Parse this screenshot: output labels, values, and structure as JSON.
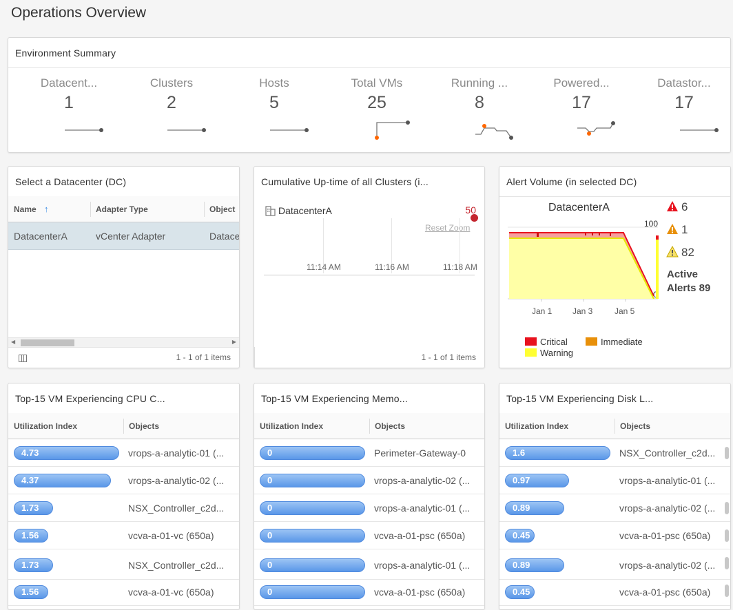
{
  "page": {
    "title": "Operations Overview"
  },
  "env_summary": {
    "title": "Environment Summary",
    "items": [
      {
        "label": "Datacent...",
        "value": "1"
      },
      {
        "label": "Clusters",
        "value": "2"
      },
      {
        "label": "Hosts",
        "value": "5"
      },
      {
        "label": "Total VMs",
        "value": "25"
      },
      {
        "label": "Running ...",
        "value": "8"
      },
      {
        "label": "Powered...",
        "value": "17"
      },
      {
        "label": "Datastor...",
        "value": "17"
      }
    ],
    "colors": {
      "spark_line": "#777777",
      "spark_marker": "#ff6600"
    }
  },
  "datacenter_select": {
    "title": "Select a Datacenter (DC)",
    "columns": [
      "Name",
      "Adapter Type",
      "Object"
    ],
    "rows": [
      [
        "DatacenterA",
        "vCenter Adapter",
        "Datace"
      ]
    ],
    "footer": "1 - 1 of 1 items"
  },
  "uptime": {
    "title": "Cumulative Up-time of all Clusters (i...",
    "dc_label": "DatacenterA",
    "value": "50",
    "reset_zoom": "Reset Zoom",
    "times": [
      "11:14 AM",
      "11:16 AM",
      "11:18 AM"
    ],
    "footer": "1 - 1 of 1 items"
  },
  "alert_volume": {
    "title": "Alert Volume (in selected DC)",
    "chart_title": "DatacenterA",
    "y_top": "100",
    "y_bottom": "0",
    "x_labels": [
      "Jan 1",
      "Jan 3",
      "Jan 5"
    ],
    "counts": {
      "critical": "6",
      "immediate": "1",
      "warning": "82"
    },
    "active_label": "Active",
    "active_line": "Alerts 89",
    "legend": {
      "critical": "Critical",
      "immediate": "Immediate",
      "warning": "Warning"
    },
    "colors": {
      "critical": "#e8121e",
      "immediate": "#e8900a",
      "warning": "#ffff33"
    }
  },
  "cpu": {
    "title": "Top-15 VM Experiencing CPU C...",
    "columns": [
      "Utilization Index",
      "Objects"
    ],
    "rows": [
      {
        "value": "4.73",
        "object": "vrops-a-analytic-01 (...",
        "fill": 1.0
      },
      {
        "value": "4.37",
        "object": "vrops-a-analytic-02 (...",
        "fill": 0.92
      },
      {
        "value": "1.73",
        "object": "NSX_Controller_c2d...",
        "fill": 0.37
      },
      {
        "value": "1.56",
        "object": "vcva-a-01-vc (650a)",
        "fill": 0.33
      },
      {
        "value": "1.73",
        "object": "NSX_Controller_c2d...",
        "fill": 0.37
      },
      {
        "value": "1.56",
        "object": "vcva-a-01-vc (650a)",
        "fill": 0.33
      }
    ]
  },
  "memory": {
    "title": "Top-15 VM Experiencing Memo...",
    "columns": [
      "Utilization Index",
      "Objects"
    ],
    "rows": [
      {
        "value": "0",
        "object": "Perimeter-Gateway-0",
        "fill": 1.0
      },
      {
        "value": "0",
        "object": "vrops-a-analytic-02 (...",
        "fill": 1.0
      },
      {
        "value": "0",
        "object": "vrops-a-analytic-01 (...",
        "fill": 1.0
      },
      {
        "value": "0",
        "object": "vcva-a-01-psc (650a)",
        "fill": 1.0
      },
      {
        "value": "0",
        "object": "vrops-a-analytic-01 (...",
        "fill": 1.0
      },
      {
        "value": "0",
        "object": "vcva-a-01-psc (650a)",
        "fill": 1.0
      }
    ]
  },
  "disk": {
    "title": "Top-15 VM Experiencing Disk L...",
    "columns": [
      "Utilization Index",
      "Objects"
    ],
    "rows": [
      {
        "value": "1.6",
        "object": "NSX_Controller_c2d...",
        "fill": 1.0
      },
      {
        "value": "0.97",
        "object": "vrops-a-analytic-01 (...",
        "fill": 0.61
      },
      {
        "value": "0.89",
        "object": "vrops-a-analytic-02 (...",
        "fill": 0.56
      },
      {
        "value": "0.45",
        "object": "vcva-a-01-psc (650a)",
        "fill": 0.28
      },
      {
        "value": "0.89",
        "object": "vrops-a-analytic-02 (...",
        "fill": 0.56
      },
      {
        "value": "0.45",
        "object": "vcva-a-01-psc (650a)",
        "fill": 0.28
      }
    ]
  }
}
